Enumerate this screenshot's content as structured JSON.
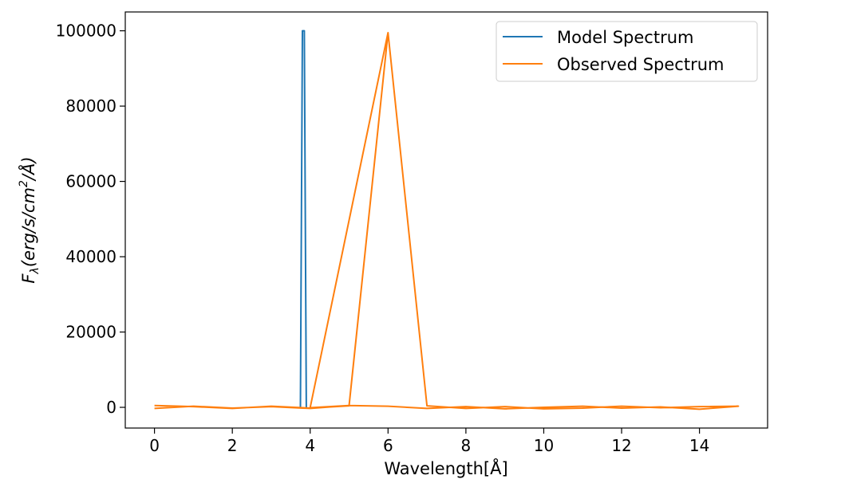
{
  "chart_data": {
    "type": "line",
    "xlabel": "Wavelength[Å]",
    "ylabel_parts": {
      "main": "F",
      "sub": "λ",
      "unit_a": "(erg/s/cm",
      "sup": "2",
      "unit_b": "/Å)"
    },
    "xlim": [
      -0.75,
      15.75
    ],
    "ylim": [
      -5500,
      105000
    ],
    "xticks": [
      0,
      2,
      4,
      6,
      8,
      10,
      12,
      14
    ],
    "yticks": [
      0,
      20000,
      40000,
      60000,
      80000,
      100000
    ],
    "grid": false,
    "legend_position": "top-right",
    "series": [
      {
        "name": "Model Spectrum",
        "color": "#1f77b4",
        "x": [
          3.75,
          3.8,
          3.85,
          3.9
        ],
        "y": [
          -100,
          100000,
          100000,
          -100
        ]
      },
      {
        "name": "Observed Spectrum",
        "color": "#ff7f0e",
        "x": [
          0,
          1,
          2,
          3,
          4,
          5,
          6,
          7,
          8,
          9,
          10,
          11,
          12,
          13,
          14,
          15,
          14,
          13,
          12,
          11,
          10,
          9,
          8,
          7,
          6,
          5,
          4,
          6,
          5,
          4,
          3,
          2,
          1,
          0
        ],
        "y": [
          -300,
          300,
          -200,
          200,
          -300,
          500,
          300,
          -300,
          200,
          -400,
          0,
          300,
          -200,
          100,
          -500,
          300,
          200,
          -100,
          300,
          -200,
          -400,
          200,
          -300,
          400,
          99500,
          500,
          -100,
          99500,
          400,
          -200,
          300,
          -300,
          200,
          500
        ]
      }
    ]
  }
}
